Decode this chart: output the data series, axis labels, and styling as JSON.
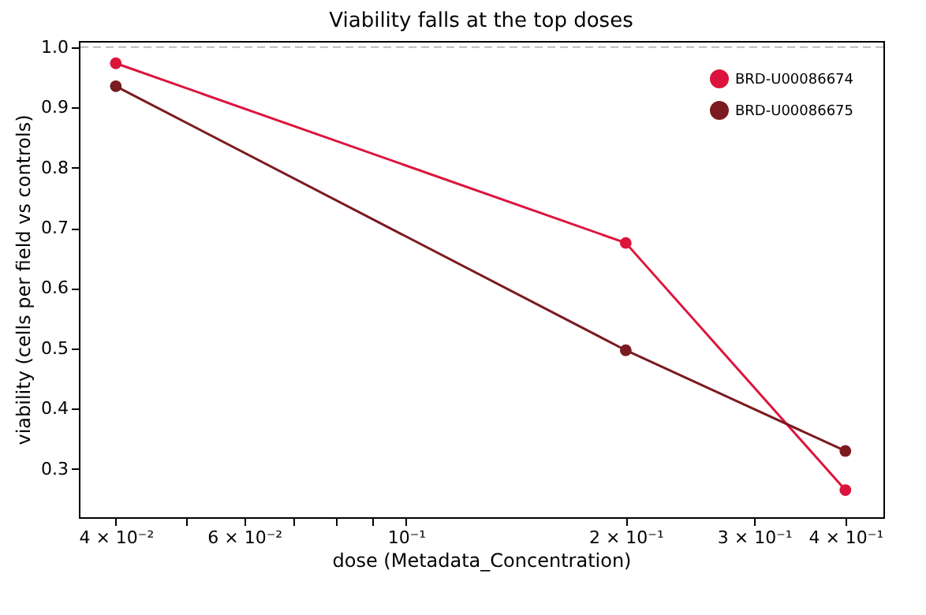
{
  "chart_data": {
    "type": "line",
    "title": "Viability falls at the top doses",
    "xlabel": "dose (Metadata_Concentration)",
    "ylabel": "viability (cells per field vs controls)",
    "x": [
      0.04,
      0.2,
      0.4
    ],
    "series": [
      {
        "name": "BRD-U00086674",
        "color": "#dc143c",
        "values": [
          0.973,
          0.675,
          0.265
        ]
      },
      {
        "name": "BRD-U00086675",
        "color": "#7b1a1f",
        "values": [
          0.935,
          0.497,
          0.33
        ]
      }
    ],
    "log": "x",
    "xlim": [
      0.0356,
      0.451
    ],
    "xticks": [
      {
        "value": 0.04,
        "label": "4 × 10⁻²"
      },
      {
        "value": 0.05,
        "label": null
      },
      {
        "value": 0.06,
        "label": "6 × 10⁻²"
      },
      {
        "value": 0.07,
        "label": null
      },
      {
        "value": 0.08,
        "label": null
      },
      {
        "value": 0.09,
        "label": null
      },
      {
        "value": 0.1,
        "label": "10⁻¹"
      },
      {
        "value": 0.2,
        "label": "2 × 10⁻¹"
      },
      {
        "value": 0.3,
        "label": "3 × 10⁻¹"
      },
      {
        "value": 0.4,
        "label": "4 × 10⁻¹"
      }
    ],
    "ylim": [
      0.22,
      1.01
    ],
    "yticks": [
      0.3,
      0.4,
      0.5,
      0.6,
      0.7,
      0.8,
      0.9,
      {
        "value": 1,
        "label": "1.0"
      }
    ],
    "ref_lines": [
      {
        "axis": "y",
        "value": 1.0,
        "color": "#bbbbbb",
        "line_style": "dashed"
      }
    ],
    "grid": false,
    "legend": "top right",
    "marker": "circle",
    "line_style": "solid"
  }
}
